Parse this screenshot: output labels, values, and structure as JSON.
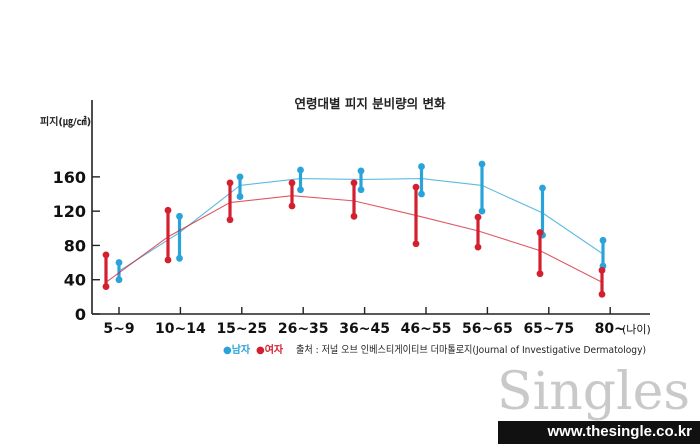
{
  "chart_data": {
    "type": "line",
    "title": "연령대별 피지 분비량의 변화",
    "ylabel": "피지(㎍/㎠)",
    "xlabel": "(나이)",
    "ylim": [
      0,
      180
    ],
    "yticks": [
      0,
      40,
      80,
      120,
      160
    ],
    "categories": [
      "5~9",
      "10~14",
      "15~25",
      "26~35",
      "36~45",
      "46~55",
      "56~65",
      "65~75",
      "80~"
    ],
    "series": [
      {
        "name": "남자",
        "color": "#2aa3d8",
        "trend": [
          50,
          95,
          150,
          158,
          157,
          158,
          150,
          118,
          70
        ],
        "ranges": [
          [
            40,
            60
          ],
          [
            65,
            114
          ],
          [
            137,
            160
          ],
          [
            145,
            168
          ],
          [
            145,
            167
          ],
          [
            140,
            172
          ],
          [
            120,
            175
          ],
          [
            92,
            147
          ],
          [
            56,
            86
          ]
        ]
      },
      {
        "name": "여자",
        "color": "#d3202f",
        "trend": [
          37,
          90,
          130,
          138,
          132,
          115,
          97,
          74,
          37
        ],
        "ranges": [
          [
            32,
            69
          ],
          [
            63,
            121
          ],
          [
            110,
            153
          ],
          [
            126,
            153
          ],
          [
            114,
            153
          ],
          [
            82,
            148
          ],
          [
            78,
            113
          ],
          [
            47,
            95
          ],
          [
            23,
            51
          ]
        ]
      }
    ]
  },
  "legend": {
    "male_marker": "●",
    "male_label": "남자",
    "female_marker": "●",
    "female_label": "여자",
    "source": "출처 : 저널 오브 인베스티게이티브 더마톨로지(Journal of Investigative Dermatology)"
  },
  "branding": {
    "logo": "Singles",
    "website": "www.thesingle.co.kr"
  }
}
